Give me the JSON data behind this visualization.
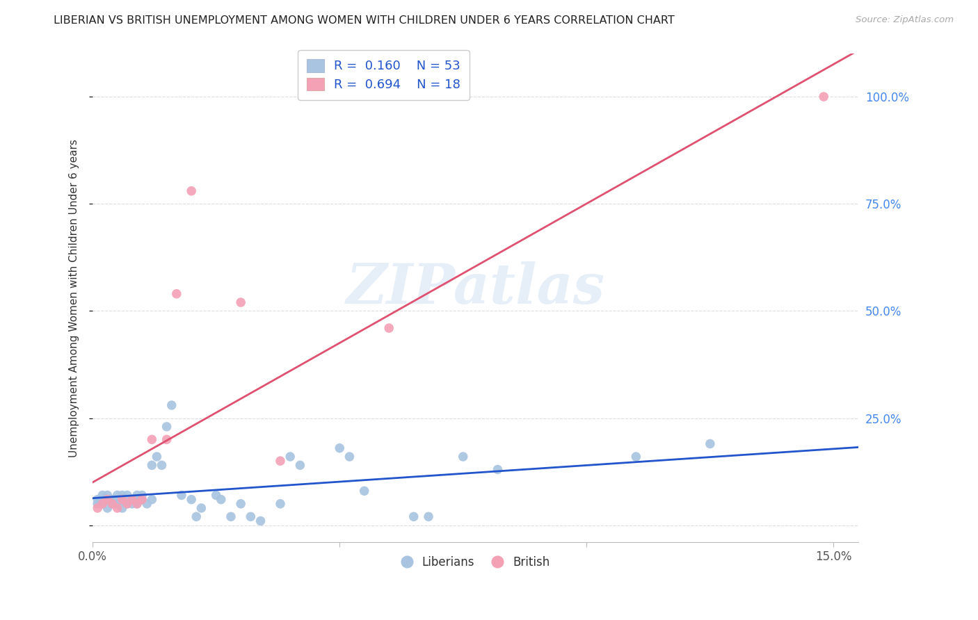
{
  "title": "LIBERIAN VS BRITISH UNEMPLOYMENT AMONG WOMEN WITH CHILDREN UNDER 6 YEARS CORRELATION CHART",
  "source": "Source: ZipAtlas.com",
  "ylabel": "Unemployment Among Women with Children Under 6 years",
  "xlim": [
    0.0,
    0.155
  ],
  "ylim": [
    -0.04,
    1.1
  ],
  "liberian_R": 0.16,
  "liberian_N": 53,
  "british_R": 0.694,
  "british_N": 18,
  "liberian_color": "#a8c4e0",
  "british_color": "#f4a0b5",
  "liberian_line_color": "#2255cc",
  "british_line_color": "#e05070",
  "background_color": "#ffffff",
  "grid_color": "#dddddd",
  "liberian_x": [
    0.001,
    0.001,
    0.002,
    0.002,
    0.003,
    0.003,
    0.003,
    0.004,
    0.004,
    0.005,
    0.005,
    0.005,
    0.006,
    0.006,
    0.006,
    0.007,
    0.007,
    0.008,
    0.008,
    0.009,
    0.009,
    0.009,
    0.01,
    0.01,
    0.011,
    0.012,
    0.012,
    0.013,
    0.014,
    0.015,
    0.016,
    0.018,
    0.02,
    0.021,
    0.022,
    0.025,
    0.026,
    0.028,
    0.03,
    0.032,
    0.034,
    0.038,
    0.04,
    0.042,
    0.05,
    0.052,
    0.055,
    0.065,
    0.068,
    0.075,
    0.082,
    0.11,
    0.125
  ],
  "liberian_y": [
    0.05,
    0.06,
    0.05,
    0.07,
    0.04,
    0.06,
    0.07,
    0.05,
    0.06,
    0.05,
    0.06,
    0.07,
    0.04,
    0.06,
    0.07,
    0.05,
    0.07,
    0.05,
    0.06,
    0.05,
    0.06,
    0.07,
    0.06,
    0.07,
    0.05,
    0.14,
    0.06,
    0.16,
    0.14,
    0.23,
    0.28,
    0.07,
    0.06,
    0.02,
    0.04,
    0.07,
    0.06,
    0.02,
    0.05,
    0.02,
    0.01,
    0.05,
    0.16,
    0.14,
    0.18,
    0.16,
    0.08,
    0.02,
    0.02,
    0.16,
    0.13,
    0.16,
    0.19
  ],
  "british_x": [
    0.001,
    0.002,
    0.003,
    0.004,
    0.005,
    0.006,
    0.007,
    0.008,
    0.009,
    0.01,
    0.012,
    0.015,
    0.017,
    0.02,
    0.03,
    0.038,
    0.06,
    0.148
  ],
  "british_y": [
    0.04,
    0.05,
    0.06,
    0.05,
    0.04,
    0.06,
    0.05,
    0.06,
    0.05,
    0.06,
    0.2,
    0.2,
    0.54,
    0.78,
    0.52,
    0.15,
    0.46,
    1.0
  ]
}
